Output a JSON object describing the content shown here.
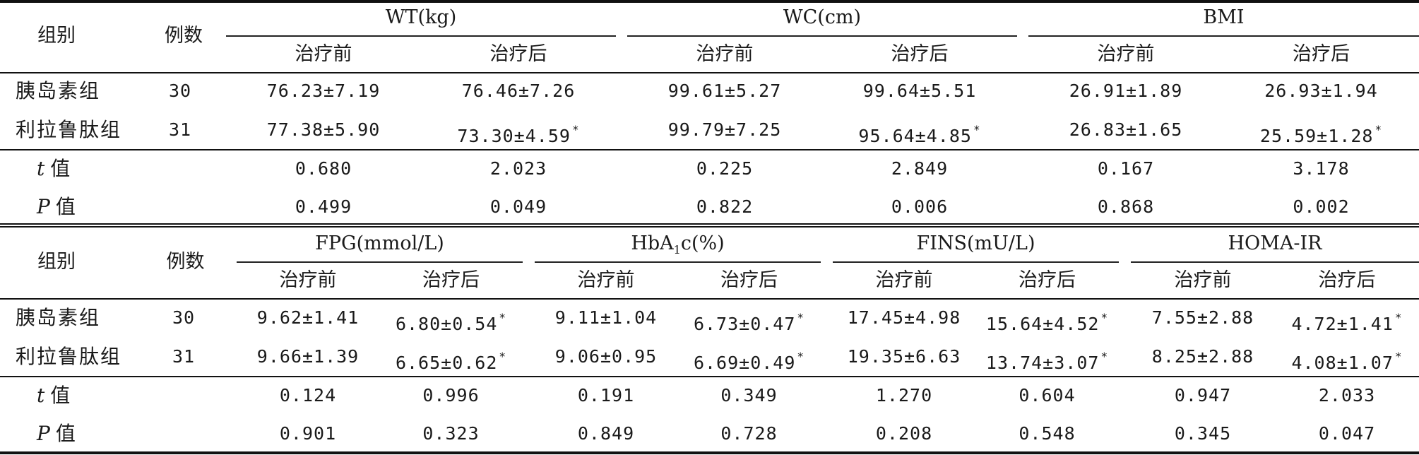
{
  "table1": {
    "group_header": "组别",
    "count_header": "例数",
    "measures": [
      "WT(kg)",
      "WC(cm)",
      "BMI"
    ],
    "before": "治疗前",
    "after": "治疗后",
    "rows": [
      {
        "group": "胰岛素组",
        "n": "30",
        "v": [
          "76.23±7.19",
          "76.46±7.26",
          "99.61±5.27",
          "99.64±5.51",
          "26.91±1.89",
          "26.93±1.94"
        ],
        "star": [
          false,
          false,
          false,
          false,
          false,
          false
        ]
      },
      {
        "group": "利拉鲁肽组",
        "n": "31",
        "v": [
          "77.38±5.90",
          "73.30±4.59",
          "99.79±7.25",
          "95.64±4.85",
          "26.83±1.65",
          "25.59±1.28"
        ],
        "star": [
          false,
          true,
          false,
          true,
          false,
          true
        ]
      }
    ],
    "t_label": "t",
    "p_label": "P",
    "value_word": "值",
    "t": [
      "0.680",
      "2.023",
      "0.225",
      "2.849",
      "0.167",
      "3.178"
    ],
    "p": [
      "0.499",
      "0.049",
      "0.822",
      "0.006",
      "0.868",
      "0.002"
    ]
  },
  "table2": {
    "group_header": "组别",
    "count_header": "例数",
    "measures": [
      "FPG(mmol/L)",
      "HbA",
      "FINS(mU/L)",
      "HOMA-IR"
    ],
    "hba_sub": "1",
    "hba_tail": "c(%)",
    "before": "治疗前",
    "after": "治疗后",
    "rows": [
      {
        "group": "胰岛素组",
        "n": "30",
        "v": [
          "9.62±1.41",
          "6.80±0.54",
          "9.11±1.04",
          "6.73±0.47",
          "17.45±4.98",
          "15.64±4.52",
          "7.55±2.88",
          "4.72±1.41"
        ],
        "star": [
          false,
          true,
          false,
          true,
          false,
          true,
          false,
          true
        ]
      },
      {
        "group": "利拉鲁肽组",
        "n": "31",
        "v": [
          "9.66±1.39",
          "6.65±0.62",
          "9.06±0.95",
          "6.69±0.49",
          "19.35±6.63",
          "13.74±3.07",
          "8.25±2.88",
          "4.08±1.07"
        ],
        "star": [
          false,
          true,
          false,
          true,
          false,
          true,
          false,
          true
        ]
      }
    ],
    "t_label": "t",
    "p_label": "P",
    "value_word": "值",
    "t": [
      "0.124",
      "0.996",
      "0.191",
      "0.349",
      "1.270",
      "0.604",
      "0.947",
      "2.033"
    ],
    "p": [
      "0.901",
      "0.323",
      "0.849",
      "0.728",
      "0.208",
      "0.548",
      "0.345",
      "0.047"
    ]
  },
  "significance_mark": "*"
}
